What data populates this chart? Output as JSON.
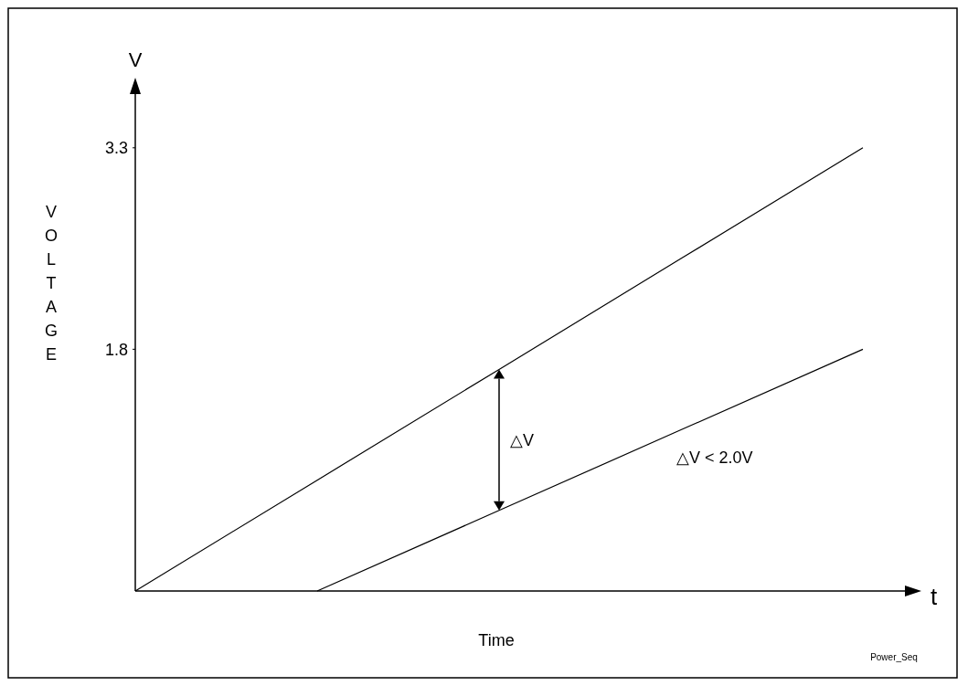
{
  "chart_data": {
    "type": "line",
    "xlabel": "Time",
    "ylabel": "VOLTAGE",
    "categories": [
      null,
      null,
      null,
      null,
      null
    ],
    "series": [
      {
        "color": "#000000",
        "values": [
          0,
          0.825,
          1.65,
          2.475,
          3.3
        ]
      },
      {
        "color": "#000000",
        "values": [
          null,
          0,
          0.6,
          1.2,
          1.8
        ]
      }
    ],
    "ylim": [
      0,
      3.7
    ],
    "yticks": [
      1.8,
      3.3
    ],
    "tick_labels": "y",
    "grid": false,
    "marker": "none",
    "line_style": "solid",
    "annotations": [
      "V",
      "t",
      "△V",
      "△V < 2.0V",
      "Power_Seq"
    ]
  }
}
